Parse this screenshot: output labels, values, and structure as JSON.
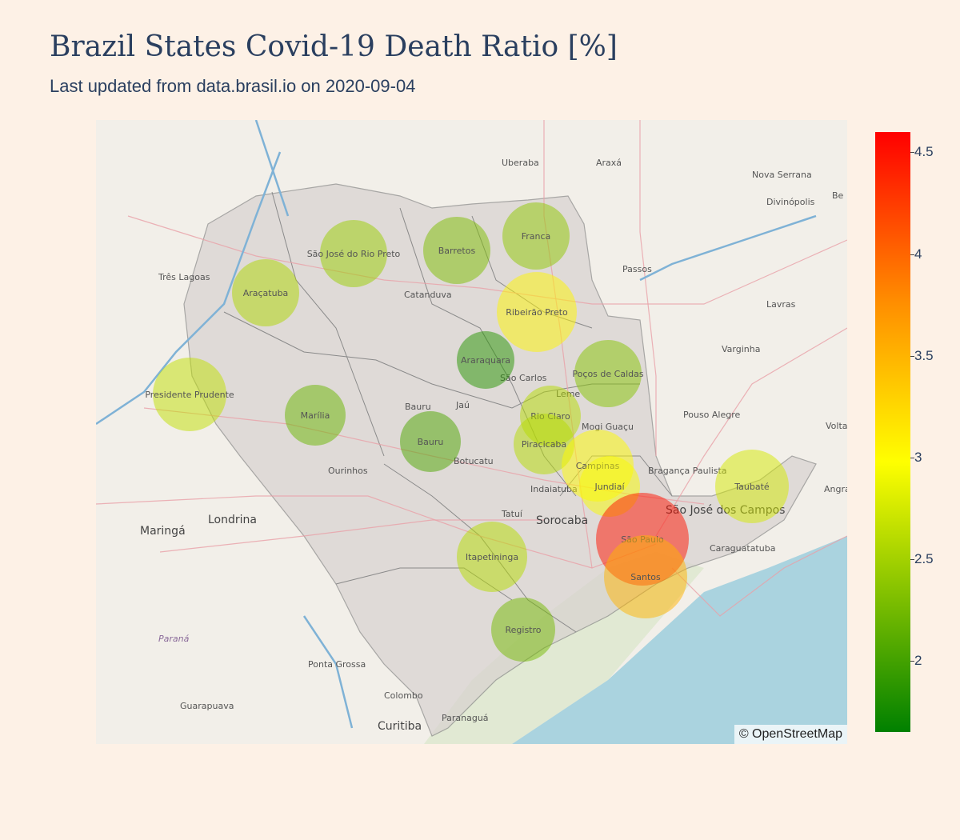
{
  "header": {
    "title": "Brazil States Covid-19 Death Ratio [%]",
    "subtitle": "Last updated from data.brasil.io on 2020-09-04"
  },
  "map": {
    "attribution": "© OpenStreetMap",
    "labels": [
      {
        "name": "Uberaba",
        "cls": ""
      },
      {
        "name": "Araxá",
        "cls": ""
      },
      {
        "name": "Nova Serrana",
        "cls": ""
      },
      {
        "name": "Divinópolis",
        "cls": ""
      },
      {
        "name": "Três Lagoas",
        "cls": ""
      },
      {
        "name": "Catanduva",
        "cls": ""
      },
      {
        "name": "Passos",
        "cls": ""
      },
      {
        "name": "Lavras",
        "cls": ""
      },
      {
        "name": "Varginha",
        "cls": ""
      },
      {
        "name": "São Carlos",
        "cls": ""
      },
      {
        "name": "Leme",
        "cls": ""
      },
      {
        "name": "Pouso Alegre",
        "cls": ""
      },
      {
        "name": "Bauru",
        "cls": ""
      },
      {
        "name": "Jaú",
        "cls": ""
      },
      {
        "name": "Mogi Guaçu",
        "cls": ""
      },
      {
        "name": "Botucatu",
        "cls": ""
      },
      {
        "name": "Ourinhos",
        "cls": ""
      },
      {
        "name": "Indaiatuba",
        "cls": ""
      },
      {
        "name": "Bragança Paulista",
        "cls": ""
      },
      {
        "name": "Tatuí",
        "cls": ""
      },
      {
        "name": "Sorocaba",
        "cls": "big"
      },
      {
        "name": "São José dos Campos",
        "cls": "big"
      },
      {
        "name": "Caraguatatuba",
        "cls": ""
      },
      {
        "name": "Maringá",
        "cls": "big"
      },
      {
        "name": "Londrina",
        "cls": "big"
      },
      {
        "name": "Paraná",
        "cls": "ital"
      },
      {
        "name": "Ponta Grossa",
        "cls": ""
      },
      {
        "name": "Colombo",
        "cls": ""
      },
      {
        "name": "Paranaguá",
        "cls": ""
      },
      {
        "name": "Curitiba",
        "cls": "big"
      },
      {
        "name": "Guarapuava",
        "cls": ""
      },
      {
        "name": "Angra dos Reis",
        "cls": ""
      },
      {
        "name": "Volta",
        "cls": ""
      },
      {
        "name": "Be",
        "cls": ""
      }
    ]
  },
  "chart_data": {
    "type": "scatter",
    "title": "Brazil States Covid-19 Death Ratio [%]",
    "subtitle": "Last updated from data.brasil.io on 2020-09-04",
    "colorscale": [
      "#008000",
      "#ffff00",
      "#ff8c00",
      "#ff0000"
    ],
    "colorbar": {
      "min": 1.65,
      "max": 4.6,
      "ticks": [
        2,
        2.5,
        3,
        3.5,
        4,
        4.5
      ]
    },
    "points": [
      {
        "name": "São José do Rio Preto",
        "value": 2.45
      },
      {
        "name": "Barretos",
        "value": 2.3
      },
      {
        "name": "Franca",
        "value": 2.4
      },
      {
        "name": "Araçatuba",
        "value": 2.55
      },
      {
        "name": "Ribeirão Preto",
        "value": 3.05
      },
      {
        "name": "Araraquara",
        "value": 1.85
      },
      {
        "name": "Poços de Caldas",
        "value": 2.35
      },
      {
        "name": "Presidente Prudente",
        "value": 2.65
      },
      {
        "name": "Marília",
        "value": 2.2
      },
      {
        "name": "Rio Claro",
        "value": 2.6
      },
      {
        "name": "Piracicaba",
        "value": 2.6
      },
      {
        "name": "Bauru",
        "value": 2.05
      },
      {
        "name": "Campinas",
        "value": 3.0
      },
      {
        "name": "Jundiaí",
        "value": 2.95
      },
      {
        "name": "Taubaté",
        "value": 2.75
      },
      {
        "name": "São Paulo",
        "value": 4.5
      },
      {
        "name": "Santos",
        "value": 3.5
      },
      {
        "name": "Itapetininga",
        "value": 2.6
      },
      {
        "name": "Registro",
        "value": 2.25
      }
    ]
  }
}
